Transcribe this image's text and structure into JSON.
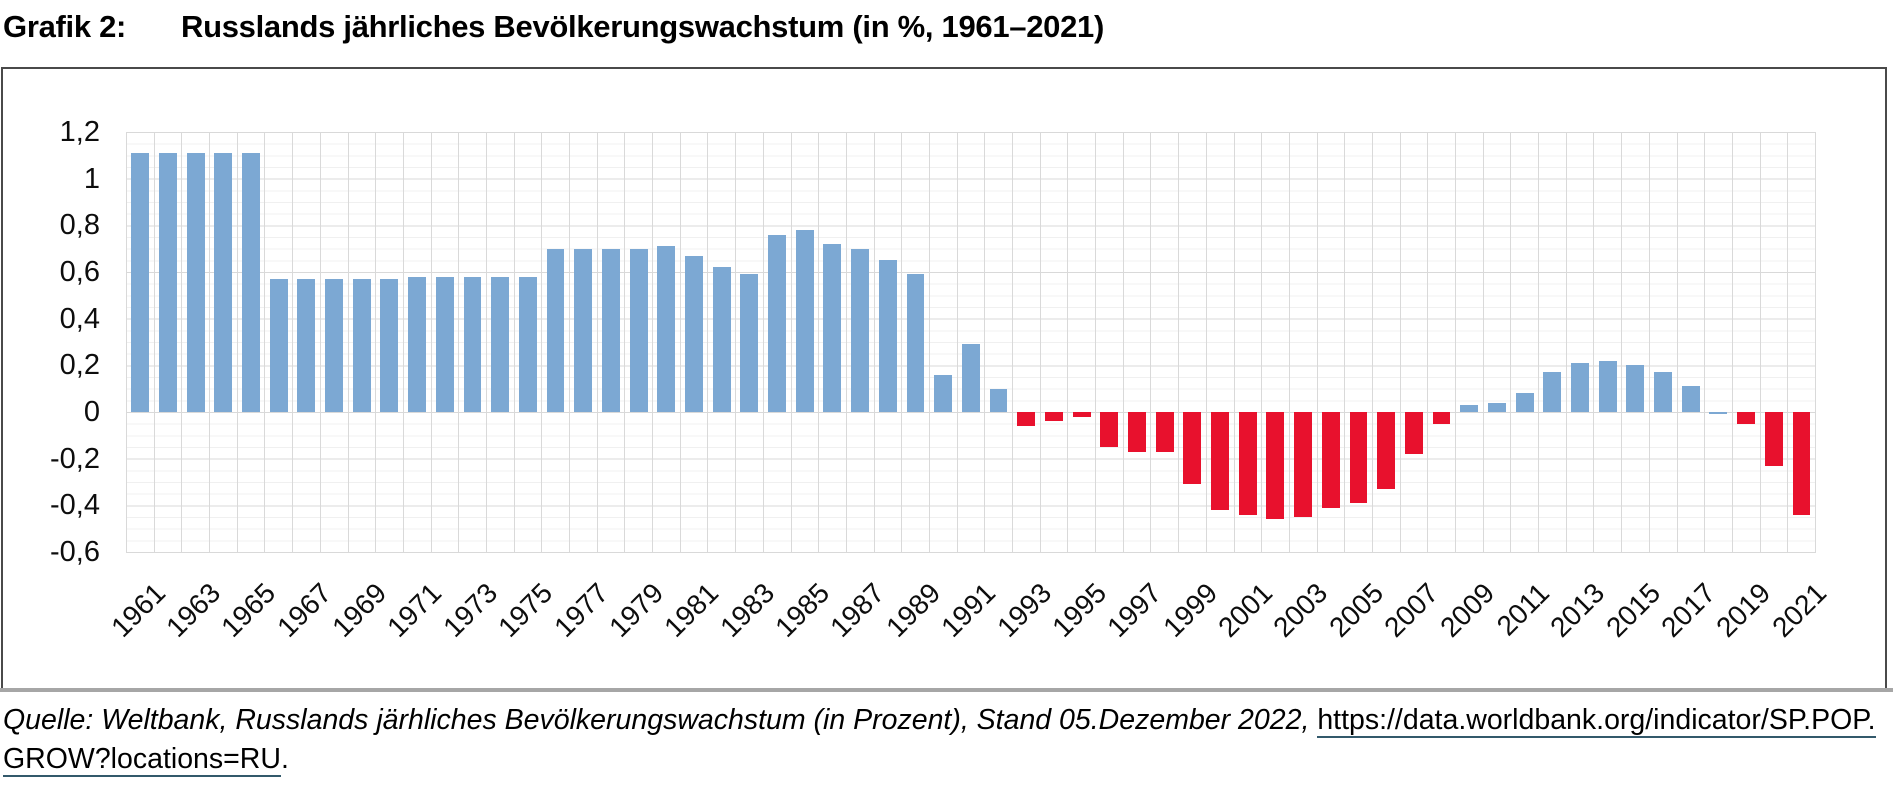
{
  "page": {
    "figure_label": "Grafik 2:",
    "figure_title": "Russlands jährliches Bevölkerungswachstum (in %, 1961–2021)"
  },
  "chart_data": {
    "type": "bar",
    "title": "Russlands jährliches Bevölkerungswachstum (in %, 1961–2021)",
    "unit": "%",
    "categories": [
      1961,
      1962,
      1963,
      1964,
      1965,
      1966,
      1967,
      1968,
      1969,
      1970,
      1971,
      1972,
      1973,
      1974,
      1975,
      1976,
      1977,
      1978,
      1979,
      1980,
      1981,
      1982,
      1983,
      1984,
      1985,
      1986,
      1987,
      1988,
      1989,
      1990,
      1991,
      1992,
      1993,
      1994,
      1995,
      1996,
      1997,
      1998,
      1999,
      2000,
      2001,
      2002,
      2003,
      2004,
      2005,
      2006,
      2007,
      2008,
      2009,
      2010,
      2011,
      2012,
      2013,
      2014,
      2015,
      2016,
      2017,
      2018,
      2019,
      2020,
      2021
    ],
    "values": [
      1.11,
      1.11,
      1.11,
      1.11,
      1.11,
      0.57,
      0.57,
      0.57,
      0.57,
      0.57,
      0.58,
      0.58,
      0.58,
      0.58,
      0.58,
      0.7,
      0.7,
      0.7,
      0.7,
      0.71,
      0.67,
      0.62,
      0.59,
      0.76,
      0.78,
      0.72,
      0.7,
      0.65,
      0.59,
      0.16,
      0.29,
      0.1,
      -0.06,
      -0.04,
      -0.02,
      -0.15,
      -0.17,
      -0.17,
      -0.31,
      -0.42,
      -0.44,
      -0.46,
      -0.45,
      -0.41,
      -0.39,
      -0.33,
      -0.18,
      -0.05,
      0.03,
      0.04,
      0.08,
      0.17,
      0.21,
      0.22,
      0.2,
      0.17,
      0.11,
      -0.01,
      -0.05,
      -0.23,
      -0.44
    ],
    "bar_colors": {
      "positive": "#7ca8d3",
      "negative": "#e8112d"
    },
    "color_overrides": {
      "2018": "positive"
    },
    "ylim": [
      -0.6,
      1.2
    ],
    "grid": {
      "major_step": 0.2,
      "minor_step": 0.05,
      "vertical_per_category": true
    },
    "yticks": [
      {
        "v": 1.2,
        "label": "1,2"
      },
      {
        "v": 1.0,
        "label": "1"
      },
      {
        "v": 0.8,
        "label": "0,8"
      },
      {
        "v": 0.6,
        "label": "0,6"
      },
      {
        "v": 0.4,
        "label": "0,4"
      },
      {
        "v": 0.2,
        "label": "0,2"
      },
      {
        "v": 0.0,
        "label": "0"
      },
      {
        "v": -0.2,
        "label": "-0,2"
      },
      {
        "v": -0.4,
        "label": "-0,4"
      },
      {
        "v": -0.6,
        "label": "-0,6"
      }
    ],
    "xtick_labels": [
      "1961",
      "1963",
      "1965",
      "1967",
      "1969",
      "1971",
      "1973",
      "1975",
      "1977",
      "1979",
      "1981",
      "1983",
      "1985",
      "1987",
      "1989",
      "1991",
      "1993",
      "1995",
      "1997",
      "1999",
      "2001",
      "2003",
      "2005",
      "2007",
      "2009",
      "2011",
      "2013",
      "2015",
      "2017",
      "2019",
      "2021"
    ],
    "legend_position": "none"
  },
  "footer": {
    "source_italic": "Quelle: Weltbank, Russlands järhliches Bevölkerungswachstum (in Prozent), Stand 05.Dezember 2022, ",
    "link_line1": "https://data.worldbank.org/indicator/SP.POP.",
    "link_line2": "GROW?locations=RU",
    "suffix": "."
  }
}
